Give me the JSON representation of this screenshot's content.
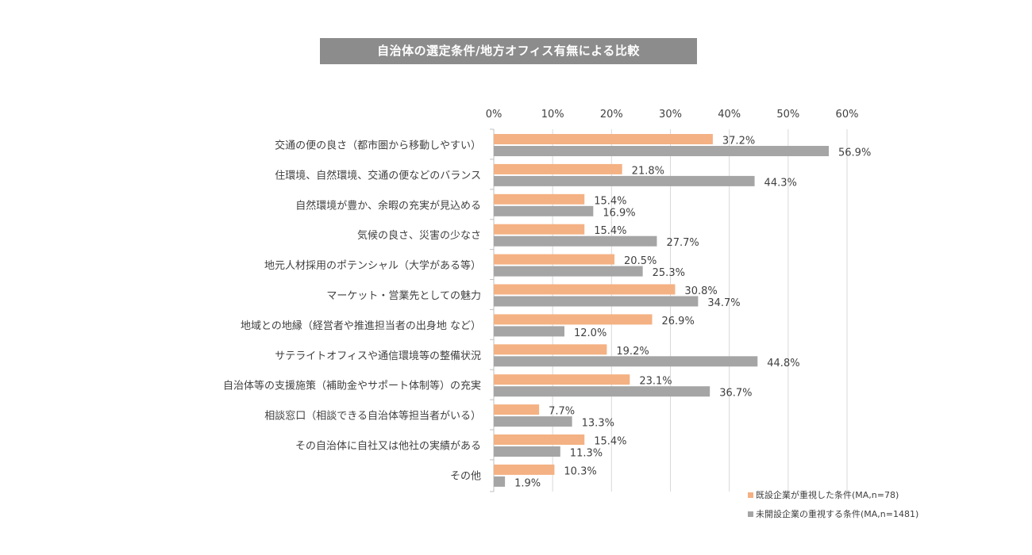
{
  "chart_data": {
    "type": "bar",
    "orientation": "horizontal",
    "title": "自治体の選定条件/地方オフィス有無による比較",
    "categories": [
      "交通の便の良さ（都市圏から移動しやすい）",
      "住環境、自然環境、交通の便などのバランス",
      "自然環境が豊か、余暇の充実が見込める",
      "気候の良さ、災害の少なさ",
      "地元人材採用のポテンシャル（大学がある等）",
      "マーケット・営業先としての魅力",
      "地域との地縁（経営者や推進担当者の出身地 など）",
      "サテライトオフィスや通信環境等の整備状況",
      "自治体等の支援施策（補助金やサポート体制等）の充実",
      "相談窓口（相談できる自治体等担当者がいる）",
      "その自治体に自社又は他社の実績がある",
      "その他"
    ],
    "series": [
      {
        "name": "既設企業が重視した条件(MA,n=78)",
        "color": "#f4b183",
        "values": [
          37.2,
          21.8,
          15.4,
          15.4,
          20.5,
          30.8,
          26.9,
          19.2,
          23.1,
          7.7,
          15.4,
          10.3
        ],
        "labels": [
          "37.2%",
          "21.8%",
          "15.4%",
          "15.4%",
          "20.5%",
          "30.8%",
          "26.9%",
          "19.2%",
          "23.1%",
          "7.7%",
          "15.4%",
          "10.3%"
        ]
      },
      {
        "name": "未開設企業の重視する条件(MA,n=1481)",
        "color": "#a5a5a5",
        "values": [
          56.9,
          44.3,
          16.9,
          27.7,
          25.3,
          34.7,
          12.0,
          44.8,
          36.7,
          13.3,
          11.3,
          1.9
        ],
        "labels": [
          "56.9%",
          "44.3%",
          "16.9%",
          "27.7%",
          "25.3%",
          "34.7%",
          "12.0%",
          "44.8%",
          "36.7%",
          "13.3%",
          "11.3%",
          "1.9%"
        ]
      }
    ],
    "xlim": [
      0,
      60
    ],
    "xticks": [
      "0%",
      "10%",
      "20%",
      "30%",
      "40%",
      "50%",
      "60%"
    ],
    "xaxis_position": "top",
    "grid": true,
    "legend_position": "bottom-right"
  }
}
